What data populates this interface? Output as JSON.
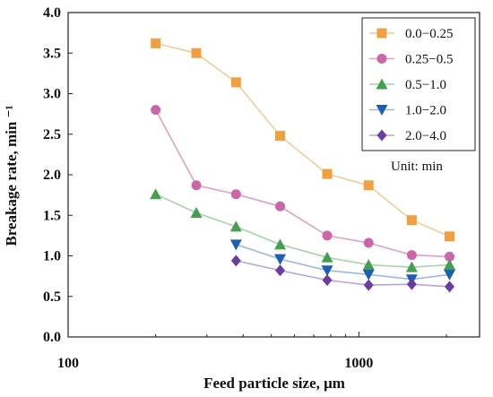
{
  "chart_data": {
    "type": "line",
    "title": "",
    "xlabel": "Feed particle size, μm",
    "ylabel": "Breakage rate, min ⁻¹",
    "xscale": "log",
    "xlim": [
      100,
      2600
    ],
    "ylim": [
      0.0,
      4.0
    ],
    "x_ticks": [
      100,
      1000
    ],
    "x_tick_labels": [
      "100",
      "1000"
    ],
    "y_ticks": [
      0.0,
      0.5,
      1.0,
      1.5,
      2.0,
      2.5,
      3.0,
      3.5,
      4.0
    ],
    "y_tick_labels": [
      "0.0",
      "0.5",
      "1.0",
      "1.5",
      "2.0",
      "2.5",
      "3.0",
      "3.5",
      "4.0"
    ],
    "legend_position": "top-right",
    "annotation": "Unit: min",
    "series": [
      {
        "name": "0.0−0.25",
        "color": "#f0a040",
        "line_color": "#f2cc99",
        "marker": "square",
        "x": [
          200,
          276,
          378,
          536,
          778,
          1080,
          1520,
          2050
        ],
        "y": [
          3.62,
          3.5,
          3.14,
          2.48,
          2.01,
          1.87,
          1.44,
          1.24
        ]
      },
      {
        "name": "0.25−0.5",
        "color": "#cc66aa",
        "line_color": "#dea2c6",
        "marker": "circle",
        "x": [
          200,
          276,
          378,
          536,
          778,
          1080,
          1520,
          2050
        ],
        "y": [
          2.8,
          1.87,
          1.76,
          1.61,
          1.25,
          1.16,
          1.01,
          0.99
        ]
      },
      {
        "name": "0.5−1.0",
        "color": "#44a050",
        "line_color": "#a4d4aa",
        "marker": "triangle-up",
        "x": [
          200,
          276,
          378,
          536,
          778,
          1080,
          1520,
          2050
        ],
        "y": [
          1.76,
          1.53,
          1.36,
          1.14,
          0.98,
          0.89,
          0.86,
          0.89
        ]
      },
      {
        "name": "1.0−2.0",
        "color": "#1f5fb0",
        "line_color": "#9cb8e0",
        "marker": "triangle-down",
        "x": [
          378,
          536,
          778,
          1080,
          1520,
          2050
        ],
        "y": [
          1.14,
          0.96,
          0.82,
          0.77,
          0.71,
          0.77
        ]
      },
      {
        "name": "2.0−4.0",
        "color": "#6a3ea0",
        "line_color": "#b9a6d6",
        "marker": "diamond",
        "x": [
          378,
          536,
          778,
          1080,
          1520,
          2050
        ],
        "y": [
          0.94,
          0.82,
          0.7,
          0.64,
          0.65,
          0.62
        ]
      }
    ]
  }
}
